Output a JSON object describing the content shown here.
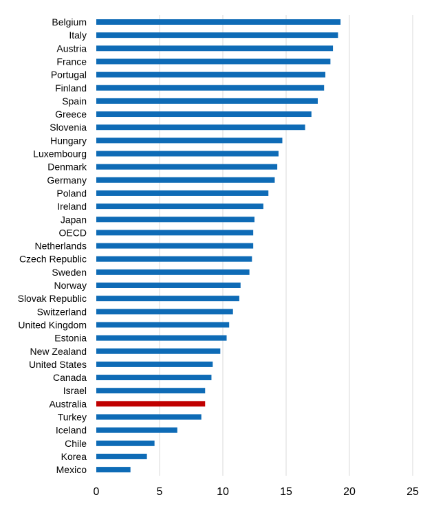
{
  "chart_data": {
    "type": "bar",
    "orientation": "horizontal",
    "categories": [
      "Belgium",
      "Italy",
      "Austria",
      "France",
      "Portugal",
      "Finland",
      "Spain",
      "Greece",
      "Slovenia",
      "Hungary",
      "Luxembourg",
      "Denmark",
      "Germany",
      "Poland",
      "Ireland",
      "Japan",
      "OECD",
      "Netherlands",
      "Czech Republic",
      "Sweden",
      "Norway",
      "Slovak Republic",
      "Switzerland",
      "United Kingdom",
      "Estonia",
      "New Zealand",
      "United States",
      "Canada",
      "Israel",
      "Australia",
      "Turkey",
      "Iceland",
      "Chile",
      "Korea",
      "Mexico"
    ],
    "values": [
      19.3,
      19.1,
      18.7,
      18.5,
      18.1,
      18.0,
      17.5,
      17.0,
      16.5,
      14.7,
      14.4,
      14.3,
      14.1,
      13.6,
      13.2,
      12.5,
      12.4,
      12.4,
      12.3,
      12.1,
      11.4,
      11.3,
      10.8,
      10.5,
      10.3,
      9.8,
      9.2,
      9.1,
      8.6,
      8.6,
      8.3,
      6.4,
      4.6,
      4.0,
      2.7
    ],
    "highlight": "Australia",
    "colors": {
      "default": "#0E6BB6",
      "highlight": "#C00000",
      "grid": "#D9D9D9"
    },
    "xlim": [
      0,
      25
    ],
    "xticks": [
      "0",
      "5",
      "10",
      "15",
      "20",
      "25"
    ],
    "grid": true,
    "title": "",
    "xlabel": "",
    "ylabel": ""
  }
}
